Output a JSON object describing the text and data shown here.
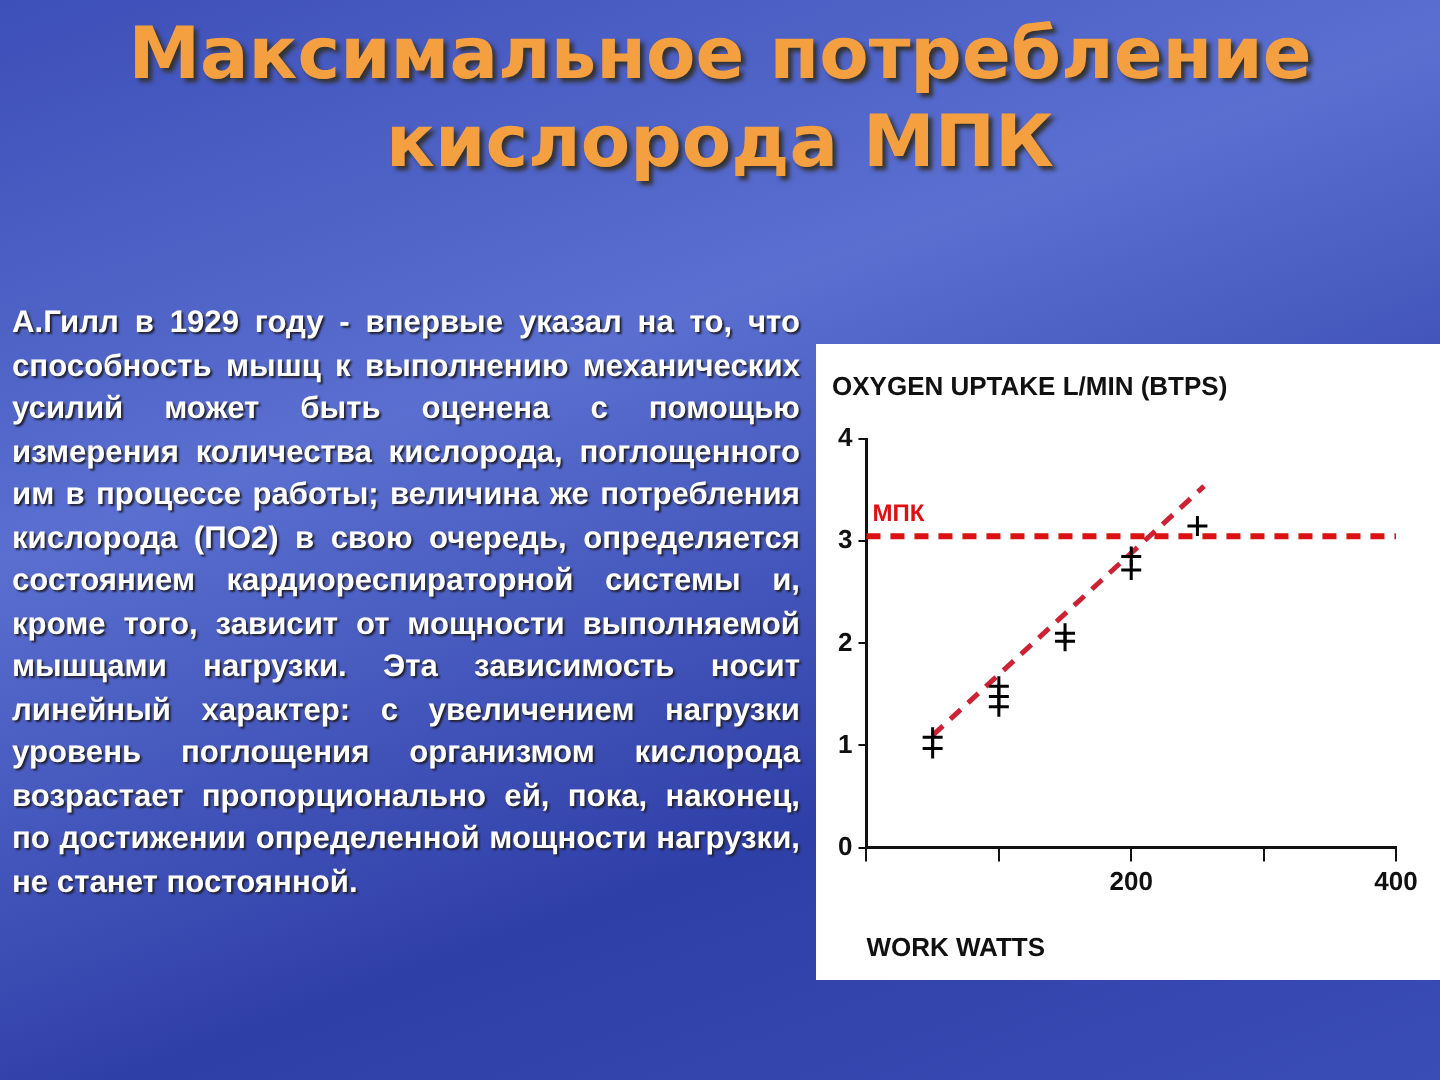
{
  "chart_data": {
    "type": "scatter",
    "title": "Максимальное потребление кислорода МПК",
    "annotations": [
      "А.Гилл в 1929 году - впервые указал на то, что способность мышц к выполнению механических усилий может быть оценена с помощью измерения количества кислорода, поглощенного им в процессе работы; величина же потребления кислорода (ПО2) в свою очередь, определяется состоянием кардиореспираторной системы и, кроме того, зависит от мощности выполняемой мышцами нагрузки. Эта зависимость носит линейный характер: с увеличением нагрузки уровень поглощения организмом кислорода возрастает пропорционально ей, пока, наконец, по достижении определенной мощности нагрузки, не станет постоянной."
    ],
    "ylabel": "OXYGEN UPTAKE L/MIN (BTPS)",
    "xlabel": "WORK WATTS",
    "xlim": [
      0,
      400
    ],
    "xticks": [
      {
        "value": 0,
        "label": null
      },
      {
        "value": 100,
        "label": null
      },
      200,
      {
        "value": 300,
        "label": null
      },
      400
    ],
    "ylim": [
      0,
      4
    ],
    "yticks": [
      0,
      1,
      2,
      3,
      4
    ],
    "grid": false,
    "series": [
      {
        "type": "scatter",
        "color": "#000000",
        "marker": "cross",
        "x": [
          50,
          50,
          100,
          100,
          100,
          150,
          150,
          200,
          200,
          250
        ],
        "values": [
          1.08,
          0.97,
          1.58,
          1.48,
          1.38,
          2.1,
          2.02,
          2.85,
          2.72,
          3.15
        ]
      },
      {
        "type": "line",
        "color": "#cc2233",
        "marker": "none",
        "line_style": "dashed",
        "x": [
          50,
          255
        ],
        "values": [
          1.1,
          3.54
        ]
      }
    ],
    "ref_lines": [
      {
        "axis": "y",
        "value": 3.05,
        "label": "МПК",
        "color": "#dd1111",
        "line_style": "dashed"
      }
    ]
  }
}
